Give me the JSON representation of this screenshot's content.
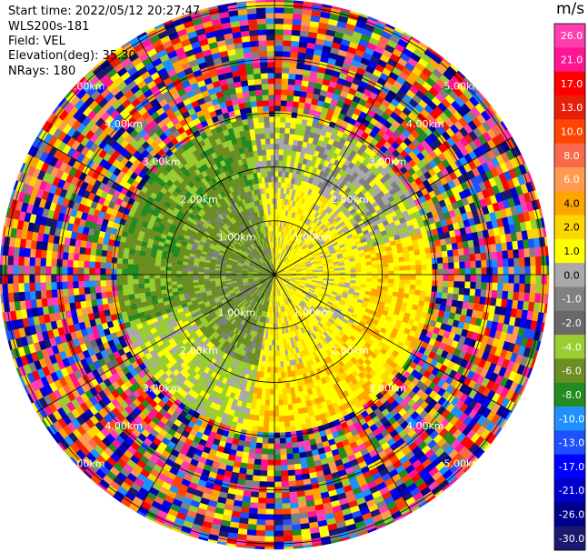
{
  "info": {
    "start_time": "Start time: 2022/05/12 20:27:47",
    "instrument": "WLS200s-181",
    "field": "Field: VEL",
    "elevation": "Elevation(deg): 35.30",
    "nrays": "NRays: 180"
  },
  "chart_data": {
    "type": "heatmap",
    "projection": "polar PPI",
    "field": "VEL",
    "range_rings_km": [
      1,
      2,
      3,
      4,
      5
    ],
    "range_labels": [
      "1.00km",
      "2.00km",
      "3.00km",
      "4.00km",
      "5.00km"
    ],
    "azimuth_lines_deg": [
      0,
      30,
      60,
      90,
      120,
      150,
      180,
      210,
      240,
      270,
      300,
      330
    ],
    "max_range_km": 5.1,
    "colorbar": {
      "unit": "m/s",
      "ticks": [
        "26.0",
        "21.0",
        "17.0",
        "13.0",
        "10.0",
        "8.0",
        "6.0",
        "4.0",
        "2.0",
        "1.0",
        "0.0",
        "-1.0",
        "-2.0",
        "-4.0",
        "-6.0",
        "-8.0",
        "-10.0",
        "-13.0",
        "-17.0",
        "-21.0",
        "-26.0",
        "-30.0"
      ],
      "colors": [
        "#ff3fb0",
        "#ff1493",
        "#ff0000",
        "#e8200a",
        "#ff4500",
        "#fa6a4a",
        "#ff9a50",
        "#ffa500",
        "#ffd700",
        "#ffff00",
        "#a9a9a9",
        "#808080",
        "#696969",
        "#9acd32",
        "#6b8e23",
        "#228b22",
        "#1e90ff",
        "#1e50ff",
        "#0000ff",
        "#0000cd",
        "#00008b",
        "#191970"
      ]
    }
  }
}
